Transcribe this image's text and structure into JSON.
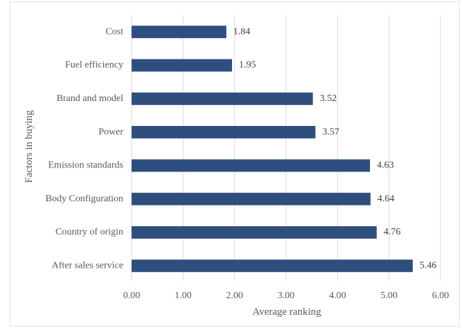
{
  "chart_data": {
    "type": "bar",
    "orientation": "horizontal",
    "categories": [
      "Cost",
      "Fuel efficiency",
      "Brand and model",
      "Power",
      "Emission standards",
      "Body Configuration",
      "Country of origin",
      "After sales service"
    ],
    "values": [
      1.84,
      1.95,
      3.52,
      3.57,
      4.63,
      4.64,
      4.76,
      5.46
    ],
    "data_labels": [
      "1.84",
      "1.95",
      "3.52",
      "3.57",
      "4.63",
      "4.64",
      "4.76",
      "5.46"
    ],
    "xlim": [
      0,
      6
    ],
    "xticks": [
      0,
      1,
      2,
      3,
      4,
      5,
      6
    ],
    "xtick_labels": [
      "0.00",
      "1.00",
      "2.00",
      "3.00",
      "4.00",
      "5.00",
      "6.00"
    ],
    "xlabel": "Average ranking",
    "ylabel": "Factors in buying",
    "title": "",
    "grid": "vertical",
    "legend": "none",
    "bar_color": "#2e4e7e"
  }
}
